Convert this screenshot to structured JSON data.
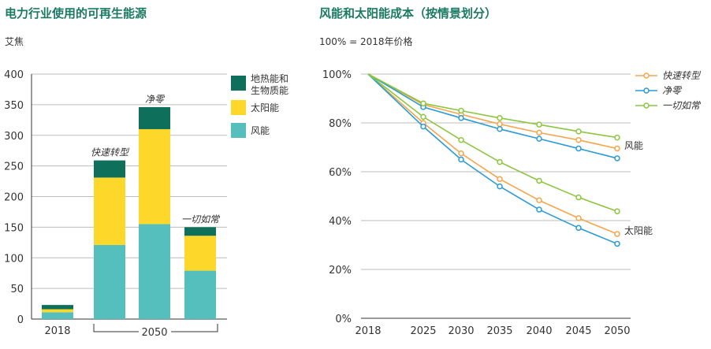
{
  "chart_data": [
    {
      "type": "bar",
      "stacked": true,
      "title": "电力行业使用的可再生能源",
      "ylabel": "艾焦",
      "ylim": [
        0,
        400
      ],
      "yticks": [
        0,
        50,
        100,
        150,
        200,
        250,
        300,
        350,
        400
      ],
      "categories": [
        "2018",
        "快速转型",
        "净零",
        "一切如常"
      ],
      "group_label": "2050",
      "series": [
        {
          "name": "风能",
          "color": "#55bfbd",
          "values": [
            11,
            121,
            155,
            79
          ]
        },
        {
          "name": "太阳能",
          "color": "#fdd82b",
          "values": [
            5,
            110,
            155,
            57
          ]
        },
        {
          "name": "地热能和生物质能",
          "color": "#0e6f5a",
          "values": [
            7,
            28,
            36,
            14
          ]
        }
      ],
      "legend_position": "right"
    },
    {
      "type": "line",
      "title": "风能和太阳能成本（按情景划分）",
      "subtitle": "100% = 2018年价格",
      "x": [
        2018,
        2025,
        2030,
        2035,
        2040,
        2045,
        2050
      ],
      "ylim": [
        0,
        100
      ],
      "yticks": [
        0,
        20,
        40,
        60,
        80,
        100
      ],
      "y_unit": "%",
      "legend_position": "top-right",
      "group_labels": {
        "wind": "风能",
        "solar": "太阳能"
      },
      "series": [
        {
          "name": "快速转型",
          "color": "#f6a54c",
          "group": "wind",
          "values": [
            100,
            87.5,
            83.5,
            79.5,
            76,
            73,
            69.5
          ]
        },
        {
          "name": "净零",
          "color": "#2b9bd6",
          "group": "wind",
          "values": [
            100,
            86.5,
            82,
            77.5,
            73.5,
            69.5,
            65.5
          ]
        },
        {
          "name": "一切如常",
          "color": "#8cc63f",
          "group": "wind",
          "values": [
            100,
            88,
            85,
            82,
            79.3,
            76.5,
            74
          ]
        },
        {
          "name": "快速转型",
          "color": "#f6a54c",
          "group": "solar",
          "values": [
            100,
            80,
            67.5,
            57,
            48.3,
            41,
            34.5
          ]
        },
        {
          "name": "净零",
          "color": "#2b9bd6",
          "group": "solar",
          "values": [
            100,
            78.5,
            65,
            54,
            44.5,
            37,
            30.5
          ]
        },
        {
          "name": "一切如常",
          "color": "#8cc63f",
          "group": "solar",
          "values": [
            100,
            82.5,
            73,
            64,
            56.3,
            49.5,
            43.8
          ]
        }
      ]
    }
  ]
}
